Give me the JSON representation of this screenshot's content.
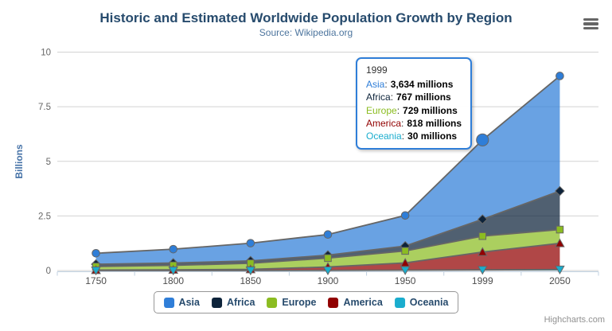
{
  "chart_data": {
    "type": "area",
    "stacking": "normal",
    "title": "Historic and Estimated Worldwide Population Growth by Region",
    "subtitle": "Source: Wikipedia.org",
    "ylabel": "Billions",
    "unit": "millions",
    "ylim": [
      0,
      10
    ],
    "yticks": [
      "0",
      "2.5",
      "5",
      "7.5",
      "10"
    ],
    "categories": [
      "1750",
      "1800",
      "1850",
      "1900",
      "1950",
      "1999",
      "2050"
    ],
    "grid": "horizontal",
    "legend_position": "bottom-center",
    "stack_order": "reversed (Oceania at bottom, Asia on top)",
    "series": [
      {
        "name": "Asia",
        "color": "#2f7ed8",
        "marker": "circle",
        "values": [
          502,
          635,
          809,
          947,
          1402,
          3634,
          5268
        ]
      },
      {
        "name": "Africa",
        "color": "#0d233a",
        "marker": "diamond",
        "values": [
          106,
          107,
          111,
          133,
          221,
          767,
          1766
        ]
      },
      {
        "name": "Europe",
        "color": "#8bbc21",
        "marker": "square",
        "values": [
          163,
          203,
          276,
          408,
          547,
          729,
          628
        ]
      },
      {
        "name": "America",
        "color": "#910000",
        "marker": "triangle",
        "values": [
          18,
          31,
          54,
          156,
          339,
          818,
          1201
        ]
      },
      {
        "name": "Oceania",
        "color": "#1aadce",
        "marker": "triangle-down",
        "values": [
          2,
          2,
          2,
          6,
          13,
          30,
          46
        ]
      }
    ],
    "hover": {
      "series": "Asia",
      "category": "1999"
    }
  },
  "tooltip": {
    "header": "1999",
    "border_color": "#2f7ed8",
    "rows": [
      {
        "label": "Asia",
        "value": "3,634 millions",
        "color": "#2f7ed8"
      },
      {
        "label": "Africa",
        "value": "767 millions",
        "color": "#0d233a"
      },
      {
        "label": "Europe",
        "value": "729 millions",
        "color": "#8bbc21"
      },
      {
        "label": "America",
        "value": "818 millions",
        "color": "#910000"
      },
      {
        "label": "Oceania",
        "value": "30 millions",
        "color": "#1aadce"
      }
    ],
    "colon": ":"
  },
  "credits": {
    "label": "Highcharts.com"
  },
  "colors": {
    "title": "#274b6d",
    "subtitle": "#4d759e",
    "axis_label": "#666666",
    "x_label": "#4d4d4d",
    "grid_line": "#d3d3d3",
    "axis_line": "#c0d0e0",
    "band_outline": "#666666",
    "legend_border": "#979797",
    "credits_text": "#909090"
  }
}
